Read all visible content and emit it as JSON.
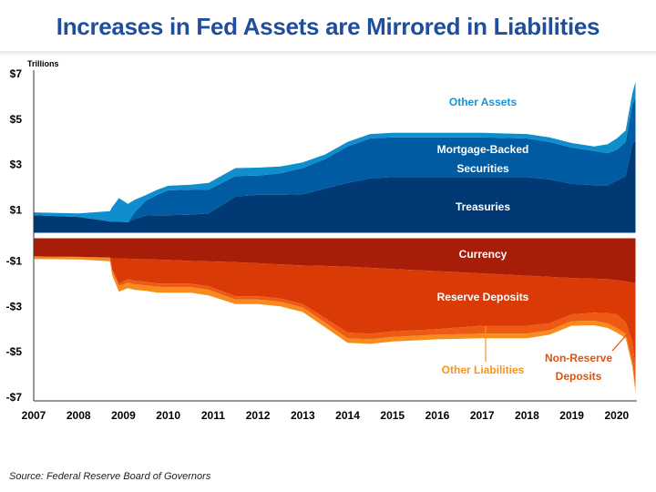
{
  "title": "Increases in Fed Assets are Mirrored in Liabilities",
  "source": "Source: Federal Reserve Board of Governors",
  "chart_data": {
    "type": "area",
    "title": "Increases in Fed Assets are Mirrored in Liabilities",
    "ylabel": "Trillions",
    "ylim": [
      -7,
      7
    ],
    "yticks": [
      7,
      5,
      3,
      1,
      -1,
      -3,
      -5,
      -7
    ],
    "ytick_labels": [
      "$7",
      "$5",
      "$3",
      "$1",
      "-$1",
      "-$3",
      "-$5",
      "-$7"
    ],
    "xlim": [
      2007,
      2020.45
    ],
    "xticks": [
      2007,
      2008,
      2009,
      2010,
      2011,
      2012,
      2013,
      2014,
      2015,
      2016,
      2017,
      2018,
      2019,
      2020
    ],
    "xtick_labels": [
      "2007",
      "2008",
      "2009",
      "2010",
      "2011",
      "2012",
      "2013",
      "2014",
      "2015",
      "2016",
      "2017",
      "2018",
      "2019",
      "2020"
    ],
    "x": [
      2007,
      2008,
      2008.7,
      2008.75,
      2008.9,
      2009.1,
      2009.25,
      2009.5,
      2009.75,
      2010,
      2010.5,
      2010.9,
      2011.5,
      2012,
      2012.5,
      2013,
      2013.5,
      2014,
      2014.5,
      2015,
      2016,
      2017,
      2018,
      2018.5,
      2019,
      2019.5,
      2019.8,
      2020,
      2020.2,
      2020.35,
      2020.42
    ],
    "assets_series": [
      {
        "name": "Treasuries",
        "color": "#003974",
        "values": [
          0.77,
          0.7,
          0.5,
          0.48,
          0.48,
          0.47,
          0.6,
          0.76,
          0.77,
          0.77,
          0.8,
          0.85,
          1.6,
          1.67,
          1.67,
          1.7,
          1.95,
          2.2,
          2.4,
          2.45,
          2.45,
          2.45,
          2.45,
          2.35,
          2.15,
          2.1,
          2.1,
          2.3,
          2.5,
          3.9,
          4.05
        ]
      },
      {
        "name": "Mortgage-Backed Securities",
        "color": "#005ba3",
        "values": [
          0,
          0,
          0,
          0,
          0,
          0,
          0.3,
          0.65,
          0.9,
          1.1,
          1.1,
          1.05,
          0.9,
          0.85,
          0.95,
          1.15,
          1.3,
          1.6,
          1.75,
          1.75,
          1.75,
          1.75,
          1.7,
          1.65,
          1.6,
          1.5,
          1.4,
          1.35,
          1.5,
          1.75,
          1.9
        ]
      },
      {
        "name": "Other Assets",
        "color": "#0e8ecd",
        "values": [
          0.13,
          0.15,
          0.45,
          0.65,
          1.05,
          0.8,
          0.55,
          0.25,
          0.22,
          0.2,
          0.22,
          0.3,
          0.35,
          0.35,
          0.3,
          0.25,
          0.2,
          0.2,
          0.2,
          0.2,
          0.2,
          0.2,
          0.2,
          0.2,
          0.2,
          0.2,
          0.4,
          0.5,
          0.5,
          0.5,
          0.7
        ]
      }
    ],
    "liabilities_series": [
      {
        "name": "Currency",
        "color": "#a81d08",
        "values": [
          0.8,
          0.82,
          0.85,
          0.88,
          0.9,
          0.9,
          0.92,
          0.92,
          0.94,
          0.95,
          1.0,
          1.02,
          1.05,
          1.1,
          1.15,
          1.2,
          1.22,
          1.25,
          1.3,
          1.35,
          1.45,
          1.55,
          1.65,
          1.7,
          1.75,
          1.78,
          1.8,
          1.85,
          1.9,
          1.95,
          1.98
        ]
      },
      {
        "name": "Reserve Deposits",
        "color": "#d93a06",
        "values": [
          0.01,
          0.01,
          0.01,
          0.5,
          1.1,
          0.9,
          0.95,
          1.0,
          1.05,
          1.05,
          1.0,
          1.1,
          1.5,
          1.45,
          1.5,
          1.7,
          2.3,
          2.9,
          2.9,
          2.75,
          2.55,
          2.3,
          2.2,
          2.05,
          1.6,
          1.5,
          1.5,
          1.5,
          1.8,
          2.6,
          3.7
        ]
      },
      {
        "name": "Non-Reserve Deposits",
        "color": "#ee5a14",
        "values": [
          0.0,
          0.0,
          0.0,
          0.05,
          0.1,
          0.15,
          0.15,
          0.15,
          0.15,
          0.15,
          0.15,
          0.15,
          0.15,
          0.15,
          0.15,
          0.15,
          0.2,
          0.25,
          0.25,
          0.25,
          0.25,
          0.35,
          0.35,
          0.3,
          0.3,
          0.35,
          0.45,
          0.6,
          0.5,
          0.9,
          0.95
        ]
      },
      {
        "name": "Other Liabilities",
        "color": "#f88b1e",
        "values": [
          0.1,
          0.1,
          0.15,
          0.2,
          0.25,
          0.25,
          0.25,
          0.25,
          0.25,
          0.25,
          0.25,
          0.25,
          0.2,
          0.2,
          0.2,
          0.2,
          0.2,
          0.2,
          0.2,
          0.2,
          0.2,
          0.2,
          0.2,
          0.2,
          0.2,
          0.2,
          0.2,
          0.2,
          0.2,
          0.2,
          0.2
        ]
      }
    ],
    "annotations": [
      {
        "key": "other_assets",
        "text": "Other Assets",
        "color": "#1a93cf"
      },
      {
        "key": "mbs1",
        "text": "Mortgage-Backed",
        "color": "#ffffff"
      },
      {
        "key": "mbs2",
        "text": "Securities",
        "color": "#ffffff"
      },
      {
        "key": "treasuries",
        "text": "Treasuries",
        "color": "#ffffff"
      },
      {
        "key": "currency",
        "text": "Currency",
        "color": "#ffffff"
      },
      {
        "key": "reserve",
        "text": "Reserve Deposits",
        "color": "#ffffff"
      },
      {
        "key": "other_liab",
        "text": "Other Liabilities",
        "color": "#f7941d"
      },
      {
        "key": "nonres1",
        "text": "Non-Reserve",
        "color": "#e0520c"
      },
      {
        "key": "nonres2",
        "text": "Deposits",
        "color": "#e0520c"
      }
    ]
  }
}
